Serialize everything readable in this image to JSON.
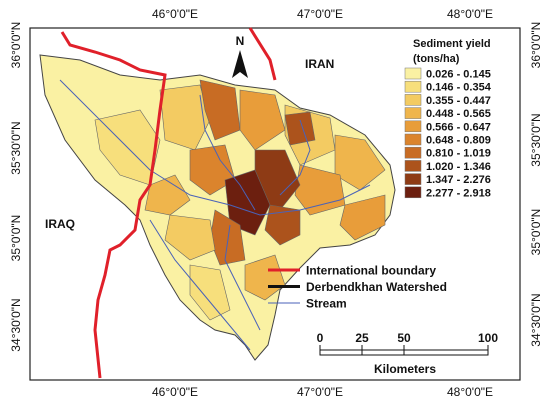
{
  "map": {
    "coordinates": {
      "top": [
        "46°0'0\"E",
        "47°0'0\"E",
        "48°0'0\"E"
      ],
      "bottom": [
        "46°0'0\"E",
        "47°0'0\"E",
        "48°0'0\"E"
      ],
      "left": [
        "36°0'0\"N",
        "35°30'0\"N",
        "35°0'0\"N",
        "34°30'0\"N"
      ],
      "right": [
        "36°0'0\"N",
        "35°30'0\"N",
        "35°0'0\"N",
        "34°30'0\"N"
      ]
    },
    "north": "N",
    "countries": [
      "IRAN",
      "IRAQ"
    ],
    "legend": {
      "title": "Sediment yield",
      "unit": "(tons/ha)",
      "classes": [
        {
          "label": "0.026 - 0.145",
          "color": "#faf1a3"
        },
        {
          "label": "0.146 - 0.354",
          "color": "#f7df7c"
        },
        {
          "label": "0.355 - 0.447",
          "color": "#f3cb62"
        },
        {
          "label": "0.448 - 0.565",
          "color": "#efb54c"
        },
        {
          "label": "0.566 - 0.647",
          "color": "#e89d3a"
        },
        {
          "label": "0.648 - 0.809",
          "color": "#db842d"
        },
        {
          "label": "0.810 - 1.019",
          "color": "#c86c24"
        },
        {
          "label": "1.020 - 1.346",
          "color": "#ac531c"
        },
        {
          "label": "1.347 - 2.276",
          "color": "#8e3b15"
        },
        {
          "label": "2.277 - 2.918",
          "color": "#6c1f0f"
        }
      ]
    },
    "line_legend": [
      {
        "label": "International boundary",
        "color": "#e0202a"
      },
      {
        "label": "Derbendkhan Watershed",
        "color": "#111111"
      },
      {
        "label": "Stream",
        "color": "#4a62b8"
      }
    ],
    "scale_bar": {
      "ticks": [
        0,
        25,
        50,
        100
      ],
      "unit": "Kilometers"
    }
  }
}
